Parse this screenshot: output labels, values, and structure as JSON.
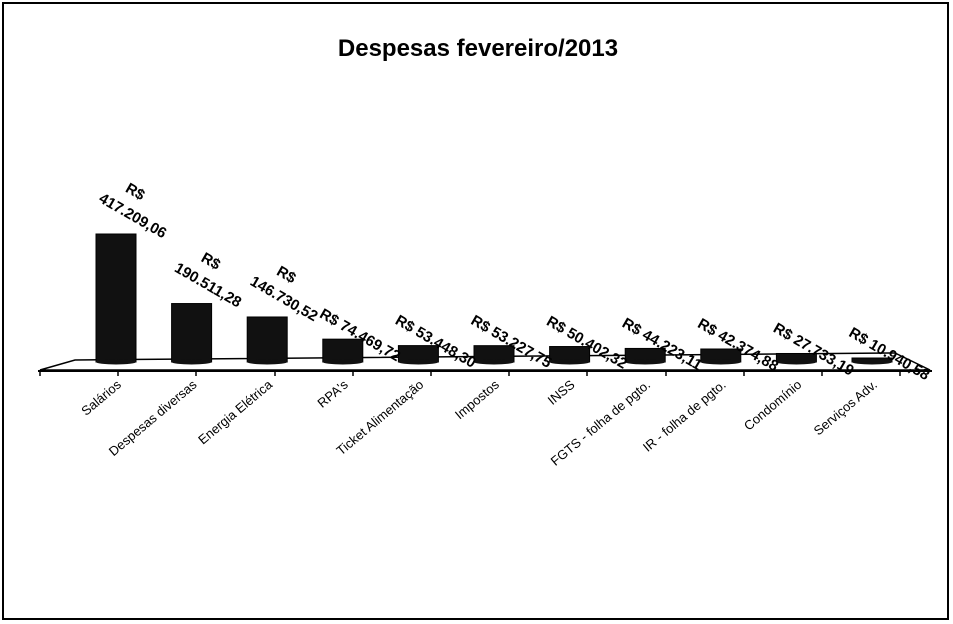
{
  "chart_data": {
    "type": "bar",
    "title": "Despesas fevereiro/2013",
    "xlabel": "",
    "ylabel": "",
    "grid": false,
    "legend": "none",
    "bar_color": "#111111",
    "categories": [
      "Salários",
      "Despesas diversas",
      "Energia Elétrica",
      "RPA's",
      "Ticket Alimentação",
      "Impostos",
      "INSS",
      "FGTS - folha de pgto.",
      "IR - folha de pgto.",
      "Condomínio",
      "Serviços Adv."
    ],
    "values": [
      417209.06,
      190511.28,
      146730.52,
      74469.72,
      53448.3,
      53227.75,
      50402.32,
      44223.11,
      42374.88,
      27733.19,
      10940.58
    ],
    "data_labels": [
      [
        "R$",
        "417.209,06"
      ],
      [
        "R$",
        "190.511,28"
      ],
      [
        "R$",
        "146.730,52"
      ],
      [
        "R$ 74.469,72"
      ],
      [
        "R$ 53.448,30"
      ],
      [
        "R$ 53.227,75"
      ],
      [
        "R$ 50.402,32"
      ],
      [
        "R$ 44.223,11"
      ],
      [
        "R$ 42.374,88"
      ],
      [
        "R$ 27.733,19"
      ],
      [
        "R$ 10.940,58"
      ]
    ]
  }
}
